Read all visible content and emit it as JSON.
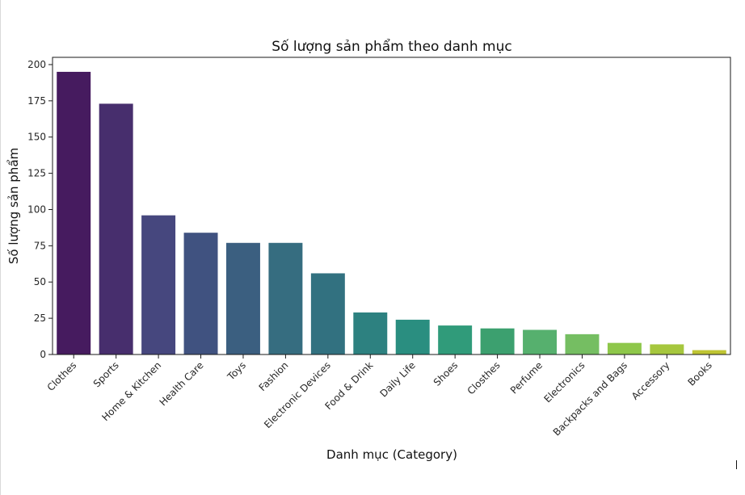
{
  "chart_data": {
    "type": "bar",
    "title": "Số lượng sản phẩm theo danh mục",
    "xlabel": "Danh mục (Category)",
    "ylabel": "Số lượng sản phẩm",
    "categories": [
      "Clothes",
      "Sports",
      "Home & Kitchen",
      "Health Care",
      "Toys",
      "Fashion",
      "Electronic Devices",
      "Food & Drink",
      "Daily Life",
      "Shoes",
      "Closthes",
      "Perfume",
      "Electronics",
      "Backpacks and Bags",
      "Accessory",
      "Books"
    ],
    "values": [
      195,
      173,
      96,
      84,
      77,
      77,
      56,
      29,
      24,
      20,
      18,
      17,
      14,
      8,
      7,
      3
    ],
    "ylim": [
      0,
      205
    ],
    "yticks": [
      0,
      25,
      50,
      75,
      100,
      125,
      150,
      175,
      200
    ],
    "colors": [
      "#461b5f",
      "#472e6d",
      "#46477e",
      "#405280",
      "#3b5f80",
      "#366d80",
      "#327180",
      "#2d8180",
      "#2a8e80",
      "#309b7a",
      "#3ca06f",
      "#56b06e",
      "#75be62",
      "#8ec74a",
      "#a6c73e",
      "#bfc533"
    ],
    "grid": false,
    "legend": "none"
  }
}
